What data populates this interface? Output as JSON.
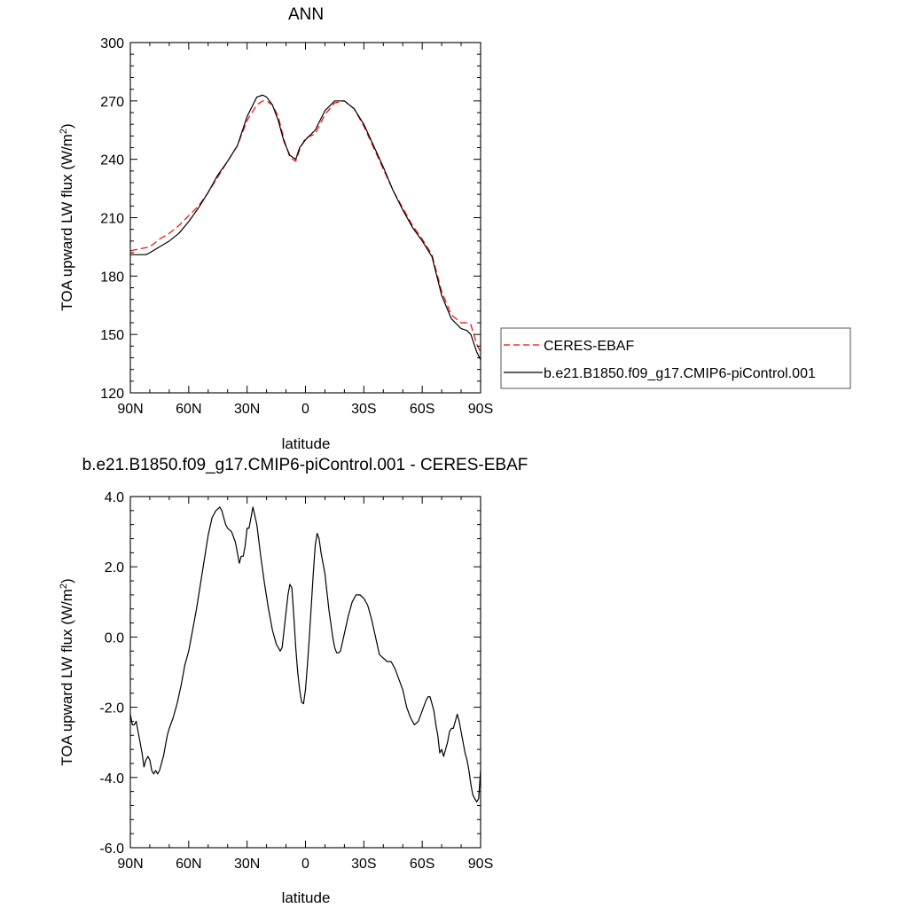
{
  "chart_data": [
    {
      "type": "line",
      "title": "ANN",
      "xlabel": "latitude",
      "ylabel": "TOA upward LW flux (W/m",
      "ylabel_sup": "2",
      "ylabel_close": ")",
      "xlim": [
        90,
        -90
      ],
      "ylim": [
        120,
        300
      ],
      "x_ticks": [
        {
          "value": 90,
          "label": "90N"
        },
        {
          "value": 60,
          "label": "60N"
        },
        {
          "value": 30,
          "label": "30N"
        },
        {
          "value": 0,
          "label": "0"
        },
        {
          "value": -30,
          "label": "30S"
        },
        {
          "value": -60,
          "label": "60S"
        },
        {
          "value": -90,
          "label": "90S"
        }
      ],
      "y_ticks": [
        {
          "value": 120,
          "label": "120"
        },
        {
          "value": 150,
          "label": "150"
        },
        {
          "value": 180,
          "label": "180"
        },
        {
          "value": 210,
          "label": "210"
        },
        {
          "value": 240,
          "label": "240"
        },
        {
          "value": 270,
          "label": "270"
        },
        {
          "value": 300,
          "label": "300"
        }
      ],
      "legend": {
        "placement": "right"
      },
      "series": [
        {
          "name": "CERES-EBAF",
          "color": "#ff0000",
          "dash": true,
          "x": [
            90,
            85,
            80,
            75,
            70,
            65,
            60,
            55,
            50,
            45,
            40,
            35,
            30,
            25,
            22,
            20,
            17,
            14,
            11,
            8,
            5,
            3,
            0,
            -5,
            -10,
            -15,
            -20,
            -25,
            -30,
            -35,
            -40,
            -45,
            -50,
            -55,
            -60,
            -65,
            -70,
            -75,
            -80,
            -83,
            -85,
            -88,
            -90
          ],
          "y": [
            193,
            194,
            195,
            199,
            202,
            206,
            211,
            216,
            223,
            231,
            239,
            247,
            260,
            268,
            270,
            270,
            268,
            262,
            250,
            241,
            239,
            245,
            251,
            253,
            263,
            269,
            270,
            266,
            257,
            246,
            235,
            224,
            215,
            206,
            199,
            191,
            172,
            160,
            156,
            156,
            155,
            145,
            141
          ]
        },
        {
          "name": "b.e21.B1850.f09_g17.CMIP6-piControl.001",
          "color": "#000000",
          "dash": false,
          "x": [
            90,
            85,
            82,
            80,
            75,
            70,
            65,
            60,
            55,
            50,
            45,
            40,
            35,
            30,
            25,
            22,
            20,
            17,
            14,
            11,
            8,
            5,
            3,
            0,
            -5,
            -10,
            -15,
            -20,
            -25,
            -30,
            -35,
            -40,
            -45,
            -50,
            -55,
            -60,
            -65,
            -70,
            -75,
            -80,
            -83,
            -85,
            -88,
            -90
          ],
          "y": [
            191,
            191,
            191,
            192,
            195,
            198,
            202,
            208,
            215,
            223,
            232,
            239,
            247,
            262,
            272,
            273,
            272,
            268,
            260,
            249,
            242,
            240,
            246,
            250,
            255,
            265,
            270,
            270,
            266,
            258,
            247,
            236,
            224,
            214,
            205,
            198,
            190,
            170,
            158,
            153,
            152,
            150,
            141,
            137
          ]
        }
      ]
    },
    {
      "type": "line",
      "title": "b.e21.B1850.f09_g17.CMIP6-piControl.001 - CERES-EBAF",
      "xlabel": "latitude",
      "ylabel": "TOA upward LW flux (W/m",
      "ylabel_sup": "2",
      "ylabel_close": ")",
      "xlim": [
        90,
        -90
      ],
      "ylim": [
        -6,
        4
      ],
      "x_ticks": [
        {
          "value": 90,
          "label": "90N"
        },
        {
          "value": 60,
          "label": "60N"
        },
        {
          "value": 30,
          "label": "30N"
        },
        {
          "value": 0,
          "label": "0"
        },
        {
          "value": -30,
          "label": "30S"
        },
        {
          "value": -60,
          "label": "60S"
        },
        {
          "value": -90,
          "label": "90S"
        }
      ],
      "y_ticks": [
        {
          "value": -6,
          "label": "-6.0"
        },
        {
          "value": -4,
          "label": "-4.0"
        },
        {
          "value": -2,
          "label": "-2.0"
        },
        {
          "value": 0,
          "label": "0.0"
        },
        {
          "value": 2,
          "label": "2.0"
        },
        {
          "value": 4,
          "label": "4.0"
        }
      ],
      "series": [
        {
          "color": "#000000",
          "dash": false,
          "x": [
            90,
            89,
            88,
            87,
            86,
            85,
            84,
            83,
            82,
            81,
            80,
            79,
            78,
            77,
            76,
            75,
            74,
            73,
            72,
            71,
            70,
            68,
            66,
            64,
            62,
            60,
            58,
            56,
            54,
            52,
            50,
            48,
            46,
            44,
            43,
            42,
            41,
            40,
            38,
            36,
            34,
            33,
            32,
            31,
            30,
            29,
            28,
            27,
            25,
            23,
            21,
            19,
            17,
            15,
            13,
            12,
            11,
            10,
            9,
            8,
            7,
            6,
            5,
            4,
            3,
            2,
            1,
            0,
            -1,
            -2,
            -3,
            -4,
            -5,
            -6,
            -7,
            -8,
            -9,
            -10,
            -12,
            -14,
            -15,
            -16,
            -17,
            -18,
            -20,
            -22,
            -24,
            -26,
            -28,
            -30,
            -32,
            -34,
            -36,
            -38,
            -40,
            -42,
            -44,
            -46,
            -48,
            -50,
            -52,
            -54,
            -56,
            -58,
            -60,
            -62,
            -63,
            -64,
            -65,
            -66,
            -67,
            -68,
            -69,
            -70,
            -71,
            -72,
            -73,
            -74,
            -75,
            -76,
            -77,
            -78,
            -79,
            -80,
            -81,
            -82,
            -83,
            -84,
            -85,
            -86,
            -87,
            -88,
            -89,
            -90
          ],
          "y": [
            -2.2,
            -2.5,
            -2.5,
            -2.4,
            -2.7,
            -3.0,
            -3.3,
            -3.7,
            -3.5,
            -3.4,
            -3.5,
            -3.8,
            -3.9,
            -3.8,
            -3.9,
            -3.8,
            -3.6,
            -3.4,
            -3.1,
            -2.8,
            -2.6,
            -2.3,
            -1.9,
            -1.4,
            -0.8,
            -0.4,
            0.2,
            0.8,
            1.5,
            2.2,
            2.9,
            3.4,
            3.6,
            3.7,
            3.6,
            3.4,
            3.2,
            3.1,
            3.0,
            2.7,
            2.1,
            2.3,
            2.3,
            2.6,
            3.1,
            3.1,
            3.4,
            3.7,
            3.2,
            2.3,
            1.5,
            0.8,
            0.2,
            -0.2,
            -0.4,
            -0.3,
            0.2,
            0.7,
            1.2,
            1.5,
            1.4,
            0.6,
            -0.3,
            -1.0,
            -1.5,
            -1.85,
            -1.9,
            -1.5,
            -0.8,
            0.0,
            0.9,
            1.8,
            2.6,
            2.95,
            2.8,
            2.4,
            2.1,
            1.8,
            0.8,
            0.0,
            -0.3,
            -0.45,
            -0.45,
            -0.4,
            0.1,
            0.6,
            1.0,
            1.2,
            1.2,
            1.1,
            0.9,
            0.5,
            0.0,
            -0.5,
            -0.6,
            -0.7,
            -0.7,
            -0.9,
            -1.2,
            -1.5,
            -2.0,
            -2.3,
            -2.5,
            -2.4,
            -2.1,
            -1.8,
            -1.7,
            -1.7,
            -1.9,
            -2.1,
            -2.5,
            -2.8,
            -3.3,
            -3.2,
            -3.4,
            -3.2,
            -3.0,
            -2.7,
            -2.6,
            -2.6,
            -2.4,
            -2.2,
            -2.4,
            -2.7,
            -3.0,
            -3.3,
            -3.5,
            -3.8,
            -4.2,
            -4.5,
            -4.6,
            -4.7,
            -4.6,
            -3.8
          ]
        }
      ]
    }
  ]
}
